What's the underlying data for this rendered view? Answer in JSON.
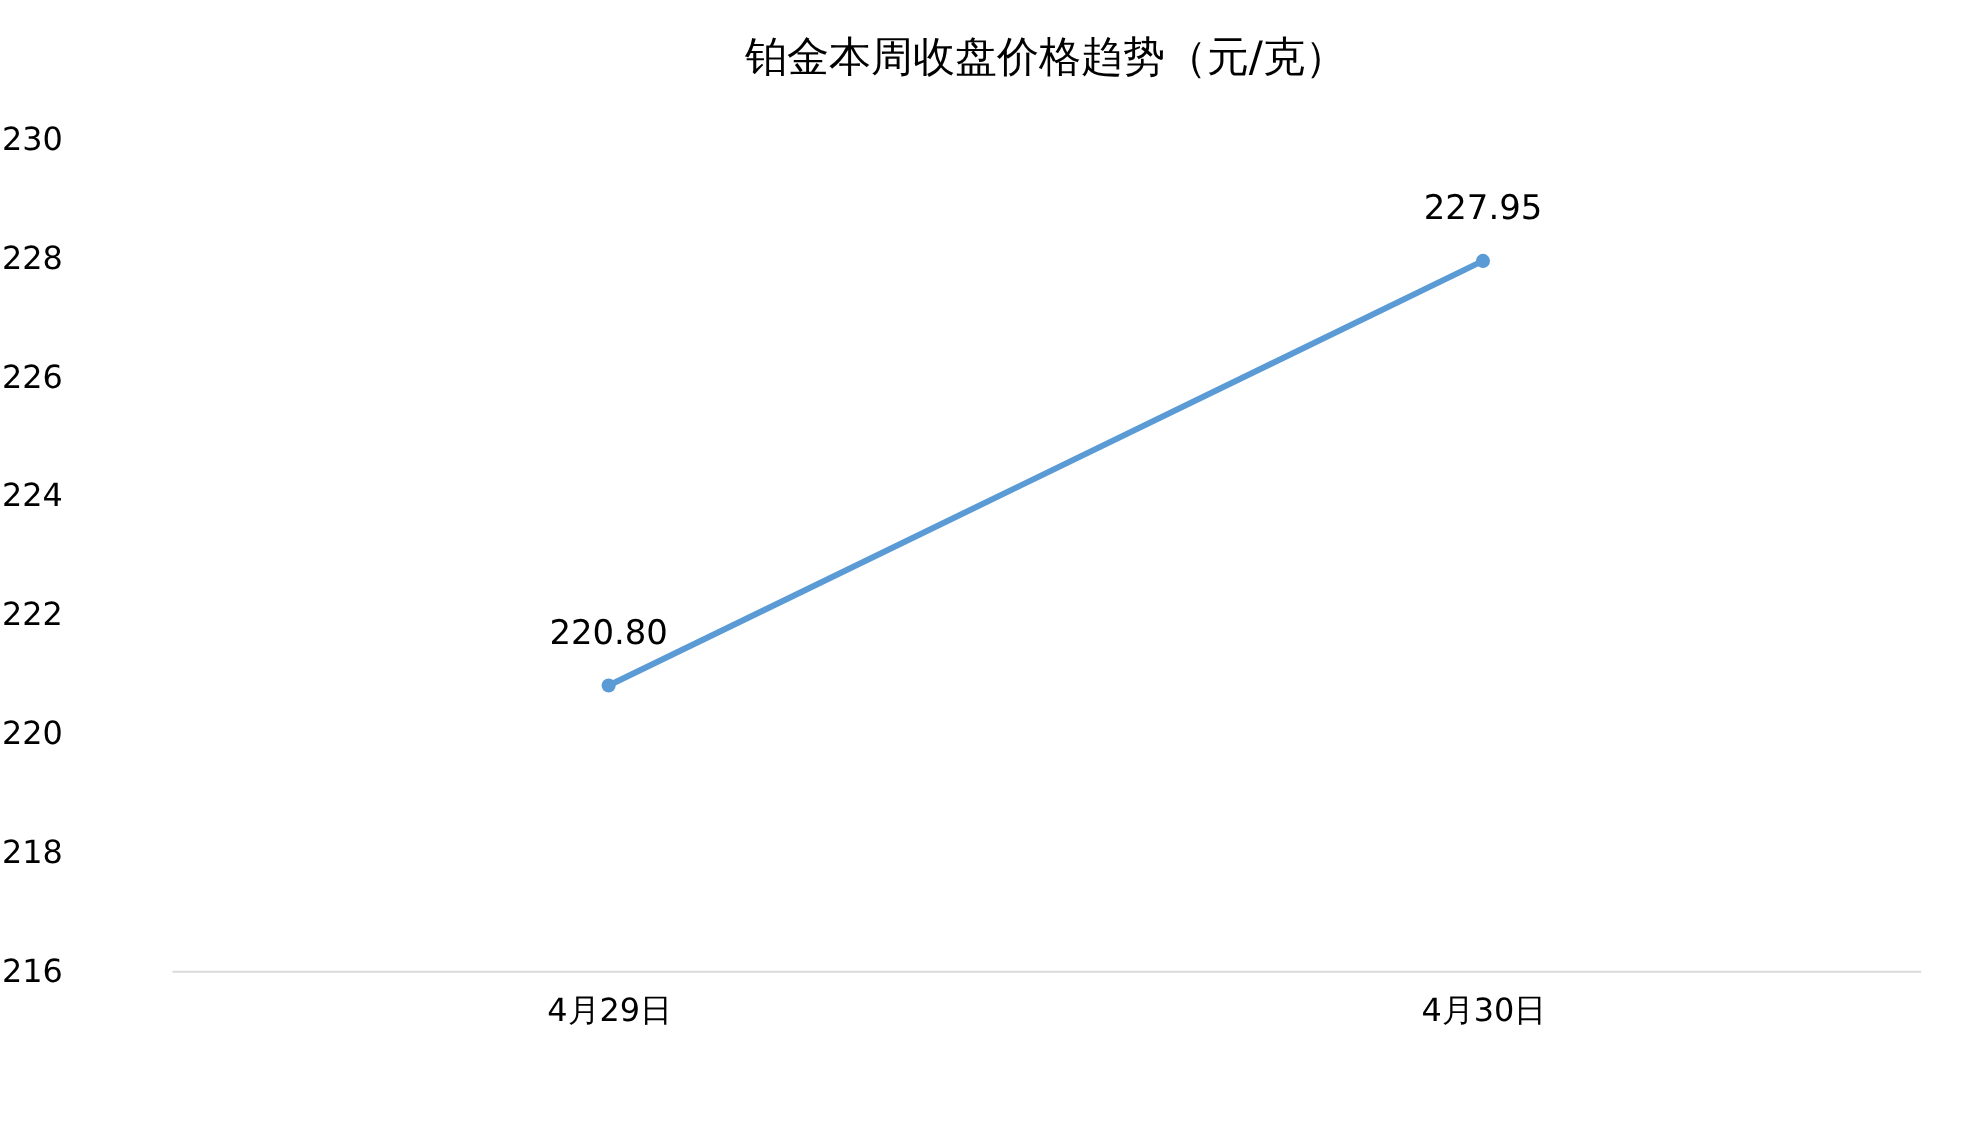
{
  "chart_data": {
    "type": "line",
    "title": "铂金本周收盘价格趋势（元/克）",
    "categories": [
      "4月29日",
      "4月30日"
    ],
    "series": [
      {
        "color": "#5b9bd5",
        "values": [
          220.8,
          227.95
        ],
        "value_labels": [
          "220.80",
          "227.95"
        ]
      }
    ],
    "ylim": [
      216,
      230
    ],
    "yticks": [
      216,
      218,
      220,
      222,
      224,
      226,
      228,
      230
    ],
    "grid": false,
    "marker": "circle",
    "line_style": "solid"
  }
}
